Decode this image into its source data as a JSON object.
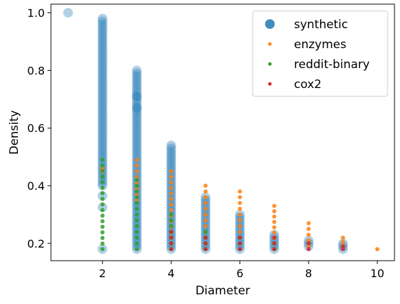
{
  "chart_data": {
    "type": "scatter",
    "title": "",
    "xlabel": "Diameter",
    "ylabel": "Density",
    "xlim": [
      0.5,
      10.5
    ],
    "ylim": [
      0.14,
      1.03
    ],
    "xticks": [
      2,
      4,
      6,
      8,
      10
    ],
    "yticks": [
      0.2,
      0.4,
      0.6,
      0.8,
      1.0
    ],
    "xtick_labels": [
      "2",
      "4",
      "6",
      "8",
      "10"
    ],
    "ytick_labels": [
      "0.2",
      "0.4",
      "0.6",
      "0.8",
      "1.0"
    ],
    "grid": false,
    "legend_position": "top-right",
    "series": [
      {
        "name": "synthetic",
        "color": "#1f77b4",
        "marker": "large-circle",
        "columns": [
          {
            "x": 1,
            "y_min": 1.0,
            "y_max": 1.0
          },
          {
            "x": 2,
            "y_min": 0.4,
            "y_max": 0.98
          },
          {
            "x": 3,
            "y_min": 0.18,
            "y_max": 0.8
          },
          {
            "x": 4,
            "y_min": 0.18,
            "y_max": 0.54
          },
          {
            "x": 5,
            "y_min": 0.18,
            "y_max": 0.36
          },
          {
            "x": 6,
            "y_min": 0.18,
            "y_max": 0.3
          },
          {
            "x": 7,
            "y_min": 0.18,
            "y_max": 0.23
          },
          {
            "x": 8,
            "y_min": 0.19,
            "y_max": 0.21
          },
          {
            "x": 9,
            "y_min": 0.18,
            "y_max": 0.2
          }
        ],
        "outliers": [
          {
            "x": 2,
            "y": 0.365
          },
          {
            "x": 2,
            "y": 0.325
          },
          {
            "x": 2,
            "y": 0.18
          },
          {
            "x": 3,
            "y": 0.71
          },
          {
            "x": 3,
            "y": 0.67
          }
        ]
      },
      {
        "name": "enzymes",
        "color": "#ff7f0e",
        "marker": "small-circle",
        "columns": [
          {
            "x": 2,
            "y_min": 0.45,
            "y_max": 0.46
          },
          {
            "x": 3,
            "y_min": 0.35,
            "y_max": 0.49
          },
          {
            "x": 4,
            "y_min": 0.2,
            "y_max": 0.45
          },
          {
            "x": 5,
            "y_min": 0.2,
            "y_max": 0.4
          },
          {
            "x": 6,
            "y_min": 0.2,
            "y_max": 0.38
          },
          {
            "x": 7,
            "y_min": 0.2,
            "y_max": 0.33
          },
          {
            "x": 8,
            "y_min": 0.19,
            "y_max": 0.27
          },
          {
            "x": 9,
            "y_min": 0.19,
            "y_max": 0.22
          },
          {
            "x": 10,
            "y_min": 0.18,
            "y_max": 0.18
          }
        ]
      },
      {
        "name": "reddit-binary",
        "color": "#2ca02c",
        "marker": "small-circle",
        "columns": [
          {
            "x": 2,
            "y_min": 0.18,
            "y_max": 0.49
          },
          {
            "x": 3,
            "y_min": 0.18,
            "y_max": 0.42
          },
          {
            "x": 4,
            "y_min": 0.18,
            "y_max": 0.3
          },
          {
            "x": 5,
            "y_min": 0.18,
            "y_max": 0.24
          },
          {
            "x": 6,
            "y_min": 0.18,
            "y_max": 0.22
          },
          {
            "x": 7,
            "y_min": 0.18,
            "y_max": 0.2
          }
        ]
      },
      {
        "name": "cox2",
        "color": "#d62728",
        "marker": "small-circle",
        "columns": [
          {
            "x": 4,
            "y_min": 0.18,
            "y_max": 0.24
          },
          {
            "x": 5,
            "y_min": 0.18,
            "y_max": 0.22
          },
          {
            "x": 6,
            "y_min": 0.18,
            "y_max": 0.22
          },
          {
            "x": 7,
            "y_min": 0.18,
            "y_max": 0.22
          },
          {
            "x": 8,
            "y_min": 0.18,
            "y_max": 0.2
          },
          {
            "x": 9,
            "y_min": 0.18,
            "y_max": 0.19
          }
        ]
      }
    ]
  }
}
